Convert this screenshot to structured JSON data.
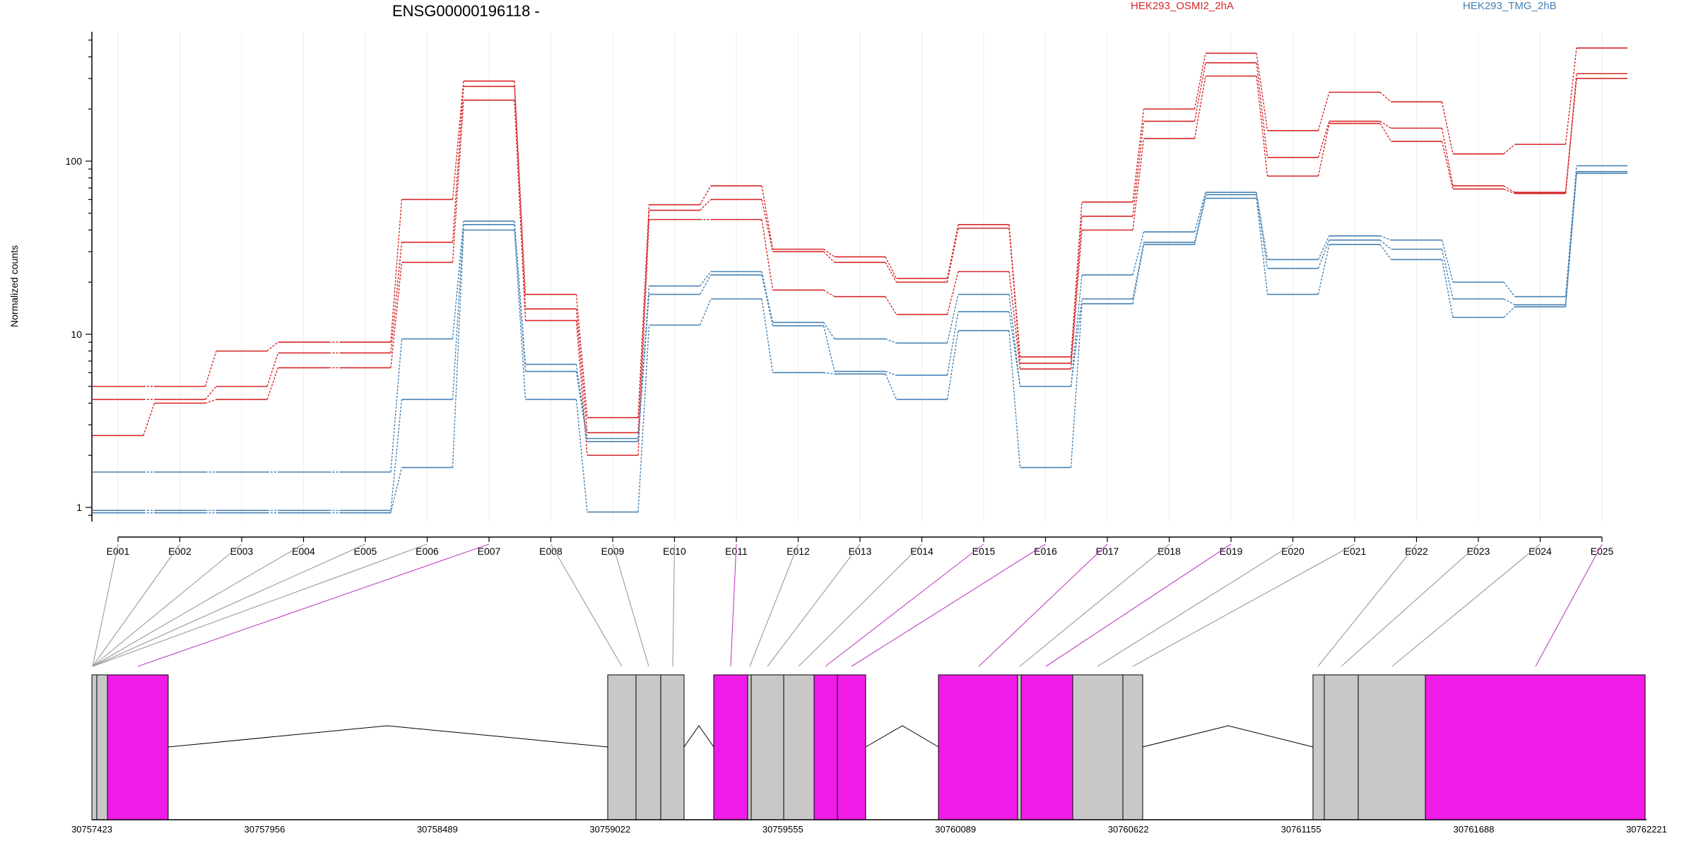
{
  "chart_data": {
    "type": "line",
    "title": "ENSG00000196118 -",
    "ylabel": "Normalized counts",
    "yscale": "log",
    "ylim": [
      0.4,
      600
    ],
    "yticks": [
      "1",
      "10",
      "100"
    ],
    "grid": "vertical",
    "legend_position": "top-right",
    "legend": [
      {
        "label": "HEK293_OSMI2_2hA",
        "color": "#d62728"
      },
      {
        "label": "HEK293_TMG_2hB",
        "color": "#4682b4"
      }
    ],
    "categories": [
      "E001",
      "E002",
      "E003",
      "E004",
      "E005",
      "E006",
      "E007",
      "E008",
      "E009",
      "E010",
      "E011",
      "E012",
      "E013",
      "E014",
      "E015",
      "E016",
      "E017",
      "E018",
      "E019",
      "E020",
      "E021",
      "E022",
      "E023",
      "E024",
      "E025"
    ],
    "series": [
      {
        "group": "HEK293_OSMI2_2hA",
        "color": "#d62728",
        "values": [
          5.0,
          5.0,
          8.0,
          9.0,
          9.0,
          60,
          290,
          17,
          3.3,
          56,
          72,
          31,
          28,
          21,
          43,
          7.4,
          58,
          200,
          420,
          150,
          250,
          220,
          110,
          125,
          450
        ]
      },
      {
        "group": "HEK293_OSMI2_2hA",
        "color": "#d62728",
        "values": [
          4.2,
          4.2,
          5.0,
          7.8,
          7.8,
          34,
          270,
          14,
          2.7,
          52,
          60,
          30,
          26,
          20,
          41,
          6.8,
          48,
          170,
          370,
          105,
          170,
          155,
          72,
          66,
          320
        ]
      },
      {
        "group": "HEK293_OSMI2_2hA",
        "color": "#d62728",
        "values": [
          2.6,
          4.0,
          4.2,
          6.4,
          6.4,
          26,
          225,
          12,
          2.0,
          46,
          46,
          18,
          16.5,
          13,
          23,
          6.3,
          40,
          135,
          310,
          82,
          165,
          130,
          69,
          65,
          300
        ]
      },
      {
        "group": "HEK293_TMG_2hB",
        "color": "#4682b4",
        "values": [
          1.6,
          1.6,
          1.6,
          1.6,
          1.6,
          9.4,
          45,
          6.7,
          2.5,
          19,
          23,
          11.7,
          9.4,
          8.9,
          17,
          5.0,
          22,
          39,
          66,
          27,
          37,
          35,
          20,
          16.5,
          94
        ]
      },
      {
        "group": "HEK293_TMG_2hB",
        "color": "#4682b4",
        "values": [
          0.96,
          0.96,
          0.96,
          0.96,
          0.96,
          4.2,
          43,
          6.1,
          2.4,
          17,
          22,
          11.2,
          6.1,
          5.8,
          13.5,
          5.0,
          16,
          34,
          64,
          24,
          35,
          31,
          16,
          14.8,
          87
        ]
      },
      {
        "group": "HEK293_TMG_2hB",
        "color": "#4682b4",
        "values": [
          0.93,
          0.93,
          0.93,
          0.93,
          0.93,
          1.7,
          40,
          4.2,
          0.94,
          11.3,
          16,
          6.0,
          5.9,
          4.2,
          10.5,
          1.7,
          15,
          33,
          61,
          17,
          33,
          27,
          12.5,
          14.4,
          85
        ]
      }
    ]
  },
  "gene_model": {
    "coord_ticks": [
      "30757423",
      "30757956",
      "30758489",
      "30759022",
      "30759555",
      "30760089",
      "30760622",
      "30761155",
      "30761688",
      "30762221"
    ],
    "colors": {
      "exon_default": "#c8c8c8",
      "exon_highlight": "#f01be6",
      "connector_default": "#999999",
      "connector_highlight": "#c040c0",
      "intron": "#000000"
    }
  }
}
